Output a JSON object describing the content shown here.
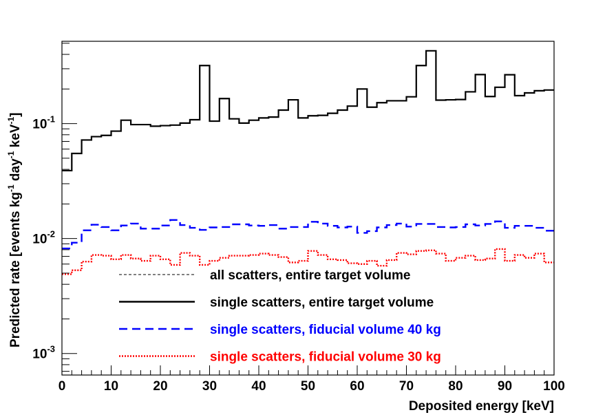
{
  "chart_data": {
    "type": "step",
    "title": "",
    "xlabel": "Deposited energy [keV]",
    "ylabel": {
      "parts": [
        {
          "text": "Predicted rate [events kg"
        },
        {
          "text": "-1",
          "sup": true
        },
        {
          "text": " day"
        },
        {
          "text": "-1",
          "sup": true
        },
        {
          "text": " keV"
        },
        {
          "text": "-1",
          "sup": true
        },
        {
          "text": "]"
        }
      ]
    },
    "x_scale": "linear",
    "y_scale": "log",
    "xlim": [
      0,
      100
    ],
    "ylim": [
      0.00065,
      0.52
    ],
    "x_ticks": [
      0,
      10,
      20,
      30,
      40,
      50,
      60,
      70,
      80,
      90,
      100
    ],
    "x_tick_labels": [
      "0",
      "10",
      "20",
      "30",
      "40",
      "50",
      "60",
      "70",
      "80",
      "90",
      "100"
    ],
    "y_ticks": [
      {
        "value": 0.1,
        "base": "10",
        "exp": "-1"
      },
      {
        "value": 0.01,
        "base": "10",
        "exp": "-2"
      },
      {
        "value": 0.001,
        "base": "10",
        "exp": "-3"
      }
    ],
    "bin_width_keV": 2,
    "legend_position": "lower-center",
    "legend": [
      {
        "label": "all scatters, entire target volume",
        "color": "#000000",
        "style": "thin-dash"
      },
      {
        "label": "single scatters, entire target volume",
        "color": "#000000",
        "style": "solid"
      },
      {
        "label": "single scatters, fiducial volume 40 kg",
        "color": "#0000ff",
        "style": "dashed"
      },
      {
        "label": "single scatters, fiducial volume 30 kg",
        "color": "#ff0000",
        "style": "dotted"
      }
    ],
    "series": [
      {
        "name": "single scatters, entire target volume",
        "color": "#000000",
        "style": "solid",
        "values": [
          0.039,
          0.055,
          0.072,
          0.077,
          0.079,
          0.086,
          0.107,
          0.098,
          0.098,
          0.095,
          0.096,
          0.097,
          0.101,
          0.108,
          0.32,
          0.105,
          0.165,
          0.11,
          0.101,
          0.107,
          0.112,
          0.114,
          0.131,
          0.161,
          0.112,
          0.117,
          0.118,
          0.123,
          0.131,
          0.142,
          0.2,
          0.139,
          0.152,
          0.158,
          0.158,
          0.171,
          0.32,
          0.43,
          0.16,
          0.161,
          0.162,
          0.189,
          0.267,
          0.172,
          0.207,
          0.266,
          0.175,
          0.185,
          0.193,
          0.196
        ]
      },
      {
        "name": "single scatters, fiducial volume 40 kg",
        "color": "#0000ff",
        "style": "dashed",
        "values": [
          0.0082,
          0.0092,
          0.0118,
          0.0132,
          0.0126,
          0.0118,
          0.013,
          0.0135,
          0.0122,
          0.0122,
          0.013,
          0.0145,
          0.0131,
          0.0124,
          0.0119,
          0.0125,
          0.0126,
          0.0133,
          0.0133,
          0.013,
          0.0129,
          0.0131,
          0.0122,
          0.0126,
          0.0126,
          0.014,
          0.0135,
          0.0129,
          0.0125,
          0.0127,
          0.0112,
          0.0116,
          0.0125,
          0.0131,
          0.0135,
          0.0127,
          0.0134,
          0.0134,
          0.0126,
          0.0125,
          0.0126,
          0.0133,
          0.013,
          0.0134,
          0.0141,
          0.0124,
          0.0129,
          0.0129,
          0.0124,
          0.0117
        ]
      },
      {
        "name": "single scatters, fiducial volume 30 kg",
        "color": "#ff0000",
        "style": "dotted",
        "values": [
          0.0049,
          0.0053,
          0.0063,
          0.0072,
          0.0071,
          0.0066,
          0.0072,
          0.0067,
          0.0064,
          0.0071,
          0.0066,
          0.0059,
          0.0075,
          0.0071,
          0.0059,
          0.0064,
          0.0068,
          0.0071,
          0.0071,
          0.0072,
          0.0074,
          0.0072,
          0.0069,
          0.0062,
          0.0064,
          0.0078,
          0.0072,
          0.0066,
          0.0065,
          0.0061,
          0.006,
          0.0064,
          0.0058,
          0.0065,
          0.0075,
          0.0073,
          0.0078,
          0.0079,
          0.0074,
          0.0064,
          0.0068,
          0.0071,
          0.0065,
          0.0067,
          0.0081,
          0.0064,
          0.0072,
          0.0068,
          0.0074,
          0.0062
        ]
      }
    ]
  }
}
